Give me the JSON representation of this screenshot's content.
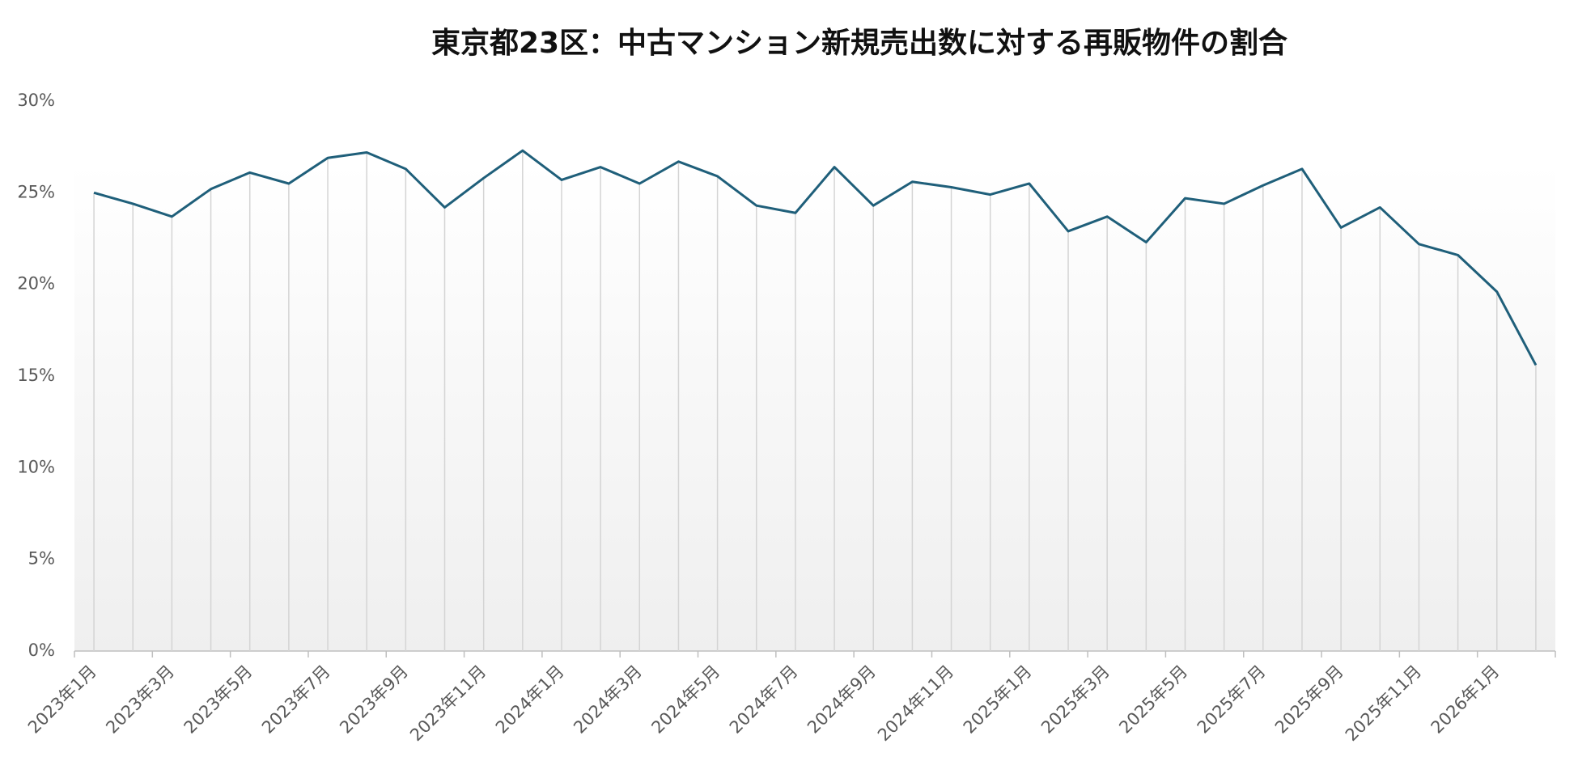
{
  "chart_data": {
    "type": "line",
    "title": "東京都23区：中古マンション新規売出数に対する再販物件の割合",
    "categories": [
      "2023年1月",
      null,
      "2023年3月",
      null,
      "2023年5月",
      null,
      "2023年7月",
      null,
      "2023年9月",
      null,
      "2023年11月",
      null,
      "2024年1月",
      null,
      "2024年3月",
      null,
      "2024年5月",
      null,
      "2024年7月",
      null,
      "2024年9月",
      null,
      "2024年11月",
      null,
      "2025年1月",
      null,
      "2025年3月",
      null,
      "2025年5月",
      null,
      "2025年7月",
      null,
      "2025年9月",
      null,
      "2025年11月",
      null,
      "2026年1月",
      null
    ],
    "values": [
      25.0,
      24.4,
      23.7,
      25.2,
      26.1,
      25.5,
      26.9,
      27.2,
      26.3,
      24.2,
      25.8,
      27.3,
      25.7,
      26.4,
      25.5,
      26.7,
      25.9,
      24.3,
      23.9,
      26.4,
      24.3,
      25.6,
      25.3,
      24.9,
      25.5,
      22.9,
      23.7,
      22.3,
      24.7,
      24.4,
      25.4,
      26.3,
      23.1,
      24.2,
      22.2,
      21.6,
      19.6,
      15.6
    ],
    "color": "#1f5f7a",
    "ylim": [
      0,
      30
    ],
    "yticks": [
      {
        "value": 0,
        "label": "0%"
      },
      {
        "value": 5,
        "label": "5%"
      },
      {
        "value": 10,
        "label": "10%"
      },
      {
        "value": 15,
        "label": "15%"
      },
      {
        "value": 20,
        "label": "20%"
      },
      {
        "value": 25,
        "label": "25%"
      },
      {
        "value": 30,
        "label": "30%"
      }
    ],
    "drop_lines": true
  }
}
